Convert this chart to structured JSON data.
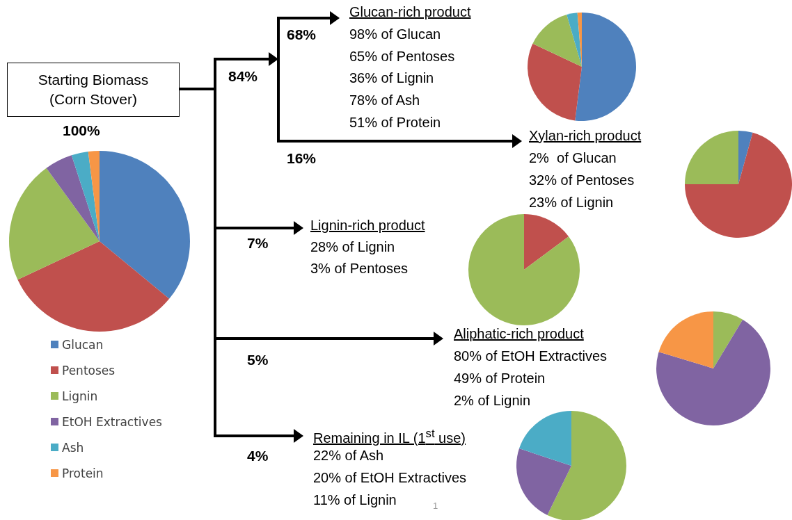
{
  "chart_data": [
    {
      "type": "pie",
      "categories": [
        "Glucan",
        "Pentoses",
        "Lignin",
        "EtOH Extractives",
        "Ash",
        "Protein"
      ],
      "values": [
        36,
        32,
        22,
        5,
        3,
        2
      ],
      "colors": [
        "#4f81bd",
        "#c0504d",
        "#9bbb59",
        "#8064a2",
        "#4bacc6",
        "#f79646"
      ],
      "legend": "bottom"
    },
    {
      "type": "pie",
      "categories": [
        null,
        null,
        null,
        null,
        null
      ],
      "values": [
        52,
        30,
        13.5,
        3.2,
        1.3
      ],
      "colors": [
        "#4f81bd",
        "#c0504d",
        "#9bbb59",
        "#4bacc6",
        "#f79646"
      ]
    },
    {
      "type": "pie",
      "categories": [
        null,
        null,
        null
      ],
      "values": [
        4.3,
        70.7,
        25
      ],
      "colors": [
        "#4f81bd",
        "#c0504d",
        "#9bbb59"
      ]
    },
    {
      "type": "pie",
      "categories": [
        null,
        null
      ],
      "values": [
        14.8,
        85.2
      ],
      "colors": [
        "#c0504d",
        "#9bbb59"
      ]
    },
    {
      "type": "pie",
      "categories": [
        null,
        null,
        null
      ],
      "values": [
        8.6,
        71.1,
        20.3
      ],
      "colors": [
        "#9bbb59",
        "#8064a2",
        "#f79646"
      ]
    },
    {
      "type": "pie",
      "categories": [
        null,
        null,
        null
      ],
      "values": [
        57.2,
        22.9,
        19.9
      ],
      "colors": [
        "#9bbb59",
        "#8064a2",
        "#4bacc6"
      ]
    },
    {
      "type": "other",
      "annotations": [
        "Starting Biomass (Corn Stover)",
        "100%",
        "84%",
        "68%",
        "16%",
        "7%",
        "5%",
        "4%",
        "Glucan-rich product",
        "98% of Glucan",
        "65% of Pentoses",
        "36% of Lignin",
        "78% of Ash",
        "51% of Protein",
        "Xylan-rich product",
        "2%  of Glucan",
        "32% of Pentoses",
        "23% of Lignin",
        "Lignin-rich product",
        "28% of Lignin",
        "3% of Pentoses",
        "Aliphatic-rich product",
        "80% of EtOH Extractives",
        "49% of Protein",
        "2% of Lignin",
        "Remaining in IL (1$^{st}$ use)",
        "22% of Ash",
        "20% of EtOH Extractives",
        "11% of Lignin",
        "1"
      ]
    }
  ]
}
